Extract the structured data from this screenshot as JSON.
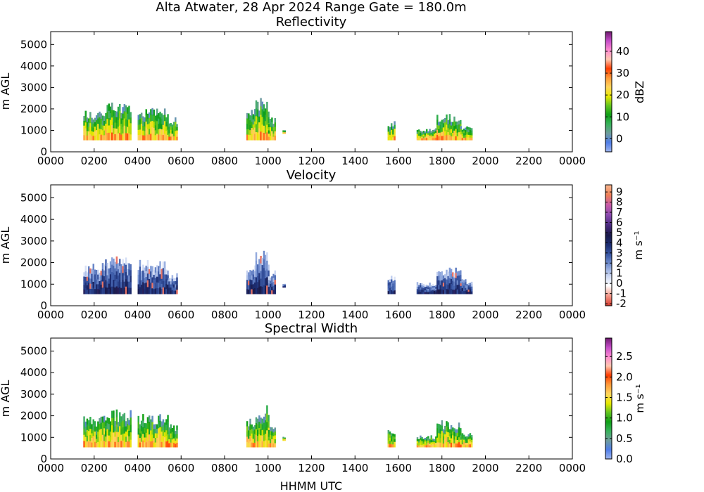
{
  "figure": {
    "suptitle": "Alta Atwater, 28 Apr 2024 Range Gate = 180.0m",
    "xlabel": "HHMM UTC"
  },
  "chart_data": [
    {
      "type": "heatmap",
      "title": "Reflectivity",
      "ylabel": "m AGL",
      "ylim": [
        0,
        5600
      ],
      "yticks": [
        "0",
        "1000",
        "2000",
        "3000",
        "4000",
        "5000"
      ],
      "xticks": [
        "0000",
        "0200",
        "0400",
        "0600",
        "0800",
        "1000",
        "1200",
        "1400",
        "1600",
        "1800",
        "2000",
        "2200",
        "0000"
      ],
      "colorbar": {
        "label": "dBZ",
        "range": [
          -6,
          49
        ],
        "ticks": [
          {
            "v": 0,
            "t": "0"
          },
          {
            "v": 10,
            "t": "10"
          },
          {
            "v": 20,
            "t": "20"
          },
          {
            "v": 30,
            "t": "30"
          },
          {
            "v": 40,
            "t": "40"
          }
        ],
        "colors": [
          "#9db4ee",
          "#4f7de8",
          "#6f9c9c",
          "#37b25a",
          "#0e9f16",
          "#62c51f",
          "#e8e800",
          "#ffd55c",
          "#ff9a3a",
          "#ff3c00",
          "#ffc7b0",
          "#ff8ad0",
          "#c44cc8",
          "#6e1a6e"
        ]
      },
      "echo_blocks": [
        {
          "start": "0130",
          "end": "0230",
          "top": 2000,
          "bottom": 550
        },
        {
          "start": "0230",
          "end": "0340",
          "top": 2300,
          "bottom": 550
        },
        {
          "start": "0400",
          "end": "0525",
          "top": 2150,
          "bottom": 550
        },
        {
          "start": "0525",
          "end": "0550",
          "top": 1650,
          "bottom": 550
        },
        {
          "start": "0900",
          "end": "0925",
          "top": 2000,
          "bottom": 550
        },
        {
          "start": "0925",
          "end": "1000",
          "top": 2550,
          "bottom": 550
        },
        {
          "start": "1000",
          "end": "1020",
          "top": 1650,
          "bottom": 550
        },
        {
          "start": "1040",
          "end": "1045",
          "top": 1050,
          "bottom": 850
        },
        {
          "start": "1530",
          "end": "1550",
          "top": 1450,
          "bottom": 550
        },
        {
          "start": "1650",
          "end": "1745",
          "top": 1100,
          "bottom": 550
        },
        {
          "start": "1745",
          "end": "1850",
          "top": 1800,
          "bottom": 550
        },
        {
          "start": "1850",
          "end": "1920",
          "top": 1250,
          "bottom": 550
        }
      ]
    },
    {
      "type": "heatmap",
      "title": "Velocity",
      "ylabel": "m AGL",
      "ylim": [
        0,
        5600
      ],
      "yticks": [
        "0",
        "1000",
        "2000",
        "3000",
        "4000",
        "5000"
      ],
      "xticks": [
        "0000",
        "0200",
        "0400",
        "0600",
        "0800",
        "1000",
        "1200",
        "1400",
        "1600",
        "1800",
        "2000",
        "2200",
        "0000"
      ],
      "colorbar": {
        "label": "m s⁻¹",
        "range": [
          -2.2,
          9.7
        ],
        "ticks": [
          {
            "v": -2,
            "t": "-2"
          },
          {
            "v": -1,
            "t": "-1"
          },
          {
            "v": 0,
            "t": "0"
          },
          {
            "v": 1,
            "t": "1"
          },
          {
            "v": 2,
            "t": "2"
          },
          {
            "v": 3,
            "t": "3"
          },
          {
            "v": 4,
            "t": "4"
          },
          {
            "v": 5,
            "t": "5"
          },
          {
            "v": 6,
            "t": "6"
          },
          {
            "v": 7,
            "t": "7"
          },
          {
            "v": 8,
            "t": "8"
          },
          {
            "v": 9,
            "t": "9"
          }
        ],
        "colors": [
          "#d83a2e",
          "#f59a8a",
          "#ffffff",
          "#c9d5f2",
          "#7d98d5",
          "#3c5ba8",
          "#1d2e73",
          "#1a1a4a",
          "#4a2a80",
          "#8a4ab0",
          "#c85aa8",
          "#ef7f55",
          "#f8b890"
        ]
      },
      "echo_blocks": [
        {
          "start": "0130",
          "end": "0230",
          "top": 2000,
          "bottom": 550
        },
        {
          "start": "0230",
          "end": "0340",
          "top": 2300,
          "bottom": 550
        },
        {
          "start": "0400",
          "end": "0525",
          "top": 2150,
          "bottom": 550
        },
        {
          "start": "0525",
          "end": "0550",
          "top": 1650,
          "bottom": 550
        },
        {
          "start": "0900",
          "end": "0925",
          "top": 2000,
          "bottom": 550
        },
        {
          "start": "0925",
          "end": "1000",
          "top": 2550,
          "bottom": 550
        },
        {
          "start": "1000",
          "end": "1020",
          "top": 1650,
          "bottom": 550
        },
        {
          "start": "1040",
          "end": "1045",
          "top": 1050,
          "bottom": 850
        },
        {
          "start": "1530",
          "end": "1550",
          "top": 1450,
          "bottom": 550
        },
        {
          "start": "1650",
          "end": "1745",
          "top": 1100,
          "bottom": 550
        },
        {
          "start": "1745",
          "end": "1850",
          "top": 1800,
          "bottom": 550
        },
        {
          "start": "1850",
          "end": "1920",
          "top": 1250,
          "bottom": 550
        }
      ]
    },
    {
      "type": "heatmap",
      "title": "Spectral Width",
      "ylabel": "m AGL",
      "ylim": [
        0,
        5600
      ],
      "yticks": [
        "0",
        "1000",
        "2000",
        "3000",
        "4000",
        "5000"
      ],
      "xticks": [
        "0000",
        "0200",
        "0400",
        "0600",
        "0800",
        "1000",
        "1200",
        "1400",
        "1600",
        "1800",
        "2000",
        "2200",
        "0000"
      ],
      "colorbar": {
        "label": "m s⁻¹",
        "range": [
          0,
          2.95
        ],
        "ticks": [
          {
            "v": 0,
            "t": "0.0"
          },
          {
            "v": 0.5,
            "t": "0.5"
          },
          {
            "v": 1,
            "t": "1.0"
          },
          {
            "v": 1.5,
            "t": "1.5"
          },
          {
            "v": 2,
            "t": "2.0"
          },
          {
            "v": 2.5,
            "t": "2.5"
          }
        ],
        "colors": [
          "#9db4ee",
          "#4f7de8",
          "#6f9c9c",
          "#37b25a",
          "#0e9f16",
          "#62c51f",
          "#e8e800",
          "#ffd55c",
          "#ff9a3a",
          "#ff3c00",
          "#ffc7b0",
          "#ff8ad0",
          "#c44cc8",
          "#6e1a6e"
        ]
      },
      "echo_blocks": [
        {
          "start": "0130",
          "end": "0230",
          "top": 2000,
          "bottom": 550
        },
        {
          "start": "0230",
          "end": "0340",
          "top": 2300,
          "bottom": 550
        },
        {
          "start": "0400",
          "end": "0525",
          "top": 2150,
          "bottom": 550
        },
        {
          "start": "0525",
          "end": "0550",
          "top": 1650,
          "bottom": 550
        },
        {
          "start": "0900",
          "end": "0925",
          "top": 2000,
          "bottom": 550
        },
        {
          "start": "0925",
          "end": "1000",
          "top": 2550,
          "bottom": 550
        },
        {
          "start": "1000",
          "end": "1020",
          "top": 1650,
          "bottom": 550
        },
        {
          "start": "1040",
          "end": "1045",
          "top": 1050,
          "bottom": 850
        },
        {
          "start": "1530",
          "end": "1550",
          "top": 1450,
          "bottom": 550
        },
        {
          "start": "1650",
          "end": "1745",
          "top": 1100,
          "bottom": 550
        },
        {
          "start": "1745",
          "end": "1850",
          "top": 1800,
          "bottom": 550
        },
        {
          "start": "1850",
          "end": "1920",
          "top": 1250,
          "bottom": 550
        }
      ]
    }
  ]
}
